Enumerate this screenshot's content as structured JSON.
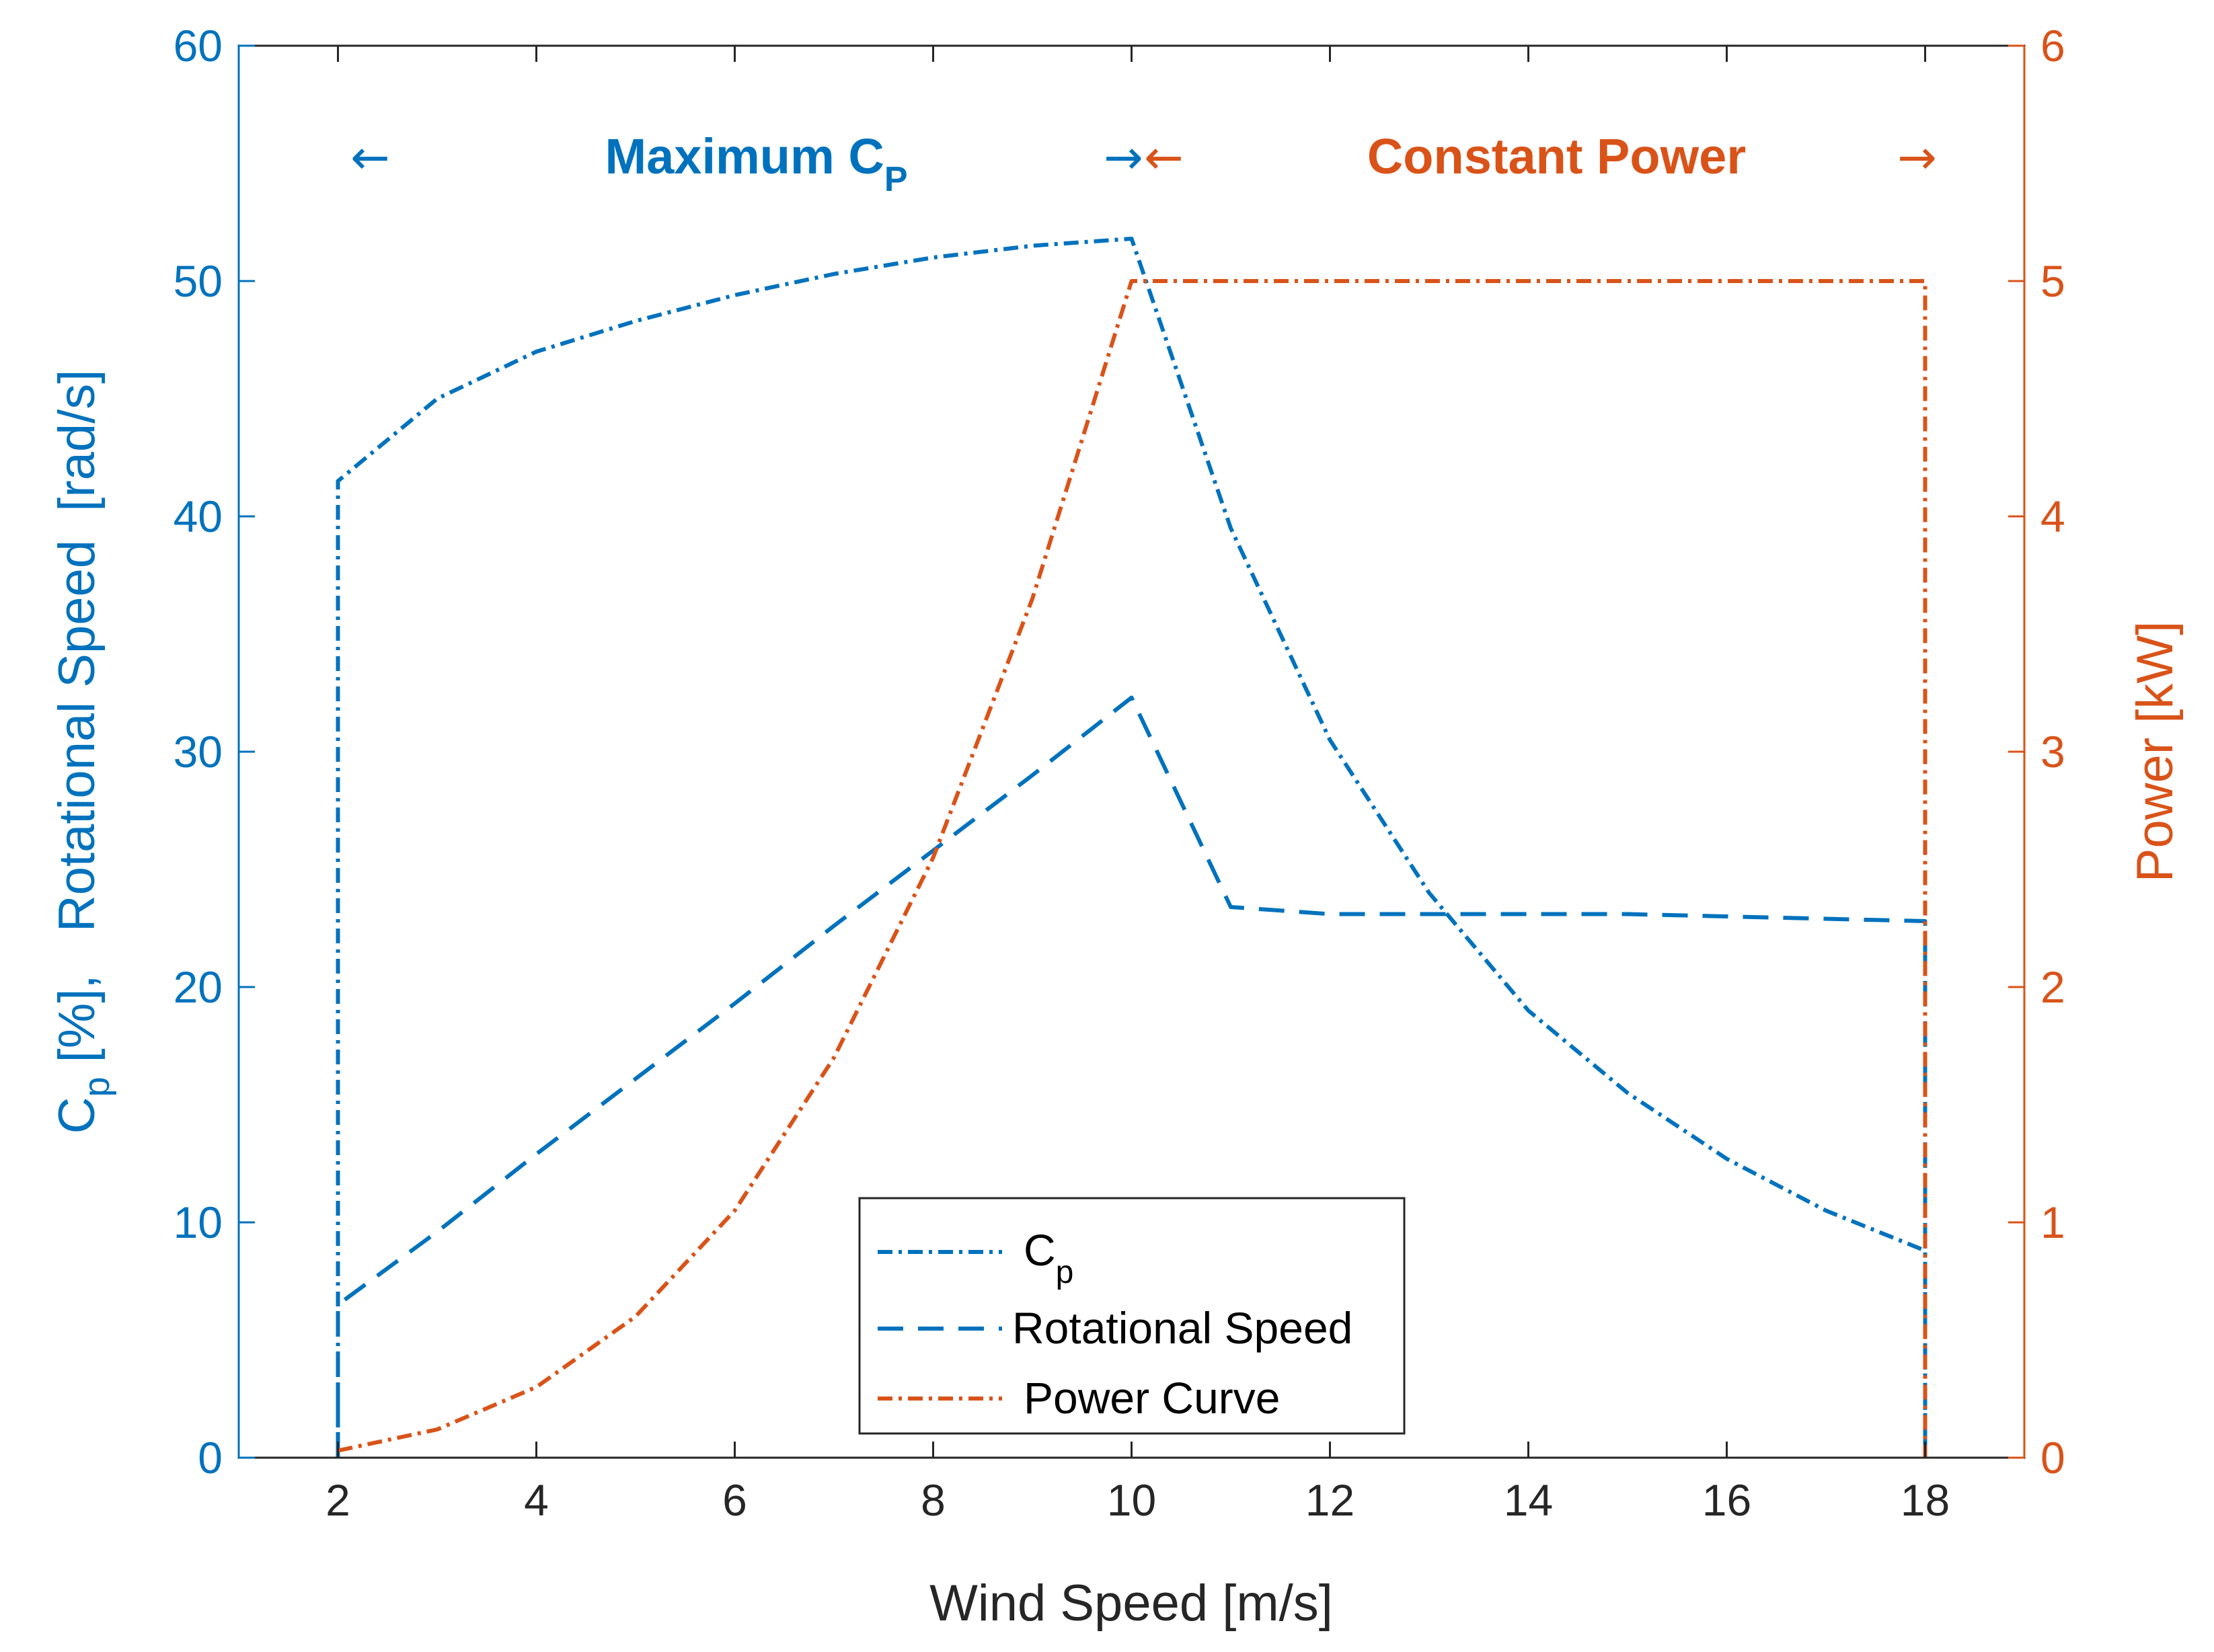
{
  "chart_data": {
    "type": "line",
    "xlabel": "Wind Speed [m/s]",
    "ylabel_left": {
      "main": "C",
      "sub": "p",
      "rest": " [%],   Rotational Speed  [rad/s]"
    },
    "ylabel_right": "Power [kW]",
    "xlim": [
      1,
      19
    ],
    "ylim_left": [
      0,
      60
    ],
    "ylim_right": [
      0,
      6
    ],
    "xticks": [
      2,
      4,
      6,
      8,
      10,
      12,
      14,
      16,
      18
    ],
    "yticks_left": [
      0,
      10,
      20,
      30,
      40,
      50,
      60
    ],
    "yticks_right": [
      0,
      1,
      2,
      3,
      4,
      5,
      6
    ],
    "colors": {
      "blue": "#0072BD",
      "orange": "#D95319",
      "axis": "#262626"
    },
    "regions": [
      {
        "label_main": "Maximum  C",
        "label_sub": "P",
        "from": 2,
        "to": 10,
        "color": "#0072BD",
        "left_arrow": "←",
        "right_arrow": "→"
      },
      {
        "label_main": "Constant Power",
        "label_sub": "",
        "from": 10,
        "to": 18,
        "color": "#D95319",
        "left_arrow": "←",
        "right_arrow": "→"
      }
    ],
    "series": [
      {
        "name": "Cp",
        "legend_main": "C",
        "legend_sub": "p",
        "axis": "left",
        "style": "dashdot",
        "color": "#0072BD",
        "x": [
          2,
          2,
          3,
          4,
          5,
          6,
          7,
          8,
          9,
          10,
          11,
          12,
          13,
          14,
          15,
          16,
          17,
          18,
          18
        ],
        "y": [
          0,
          41.5,
          45,
          47,
          48.3,
          49.4,
          50.3,
          51,
          51.5,
          51.8,
          39.5,
          30.5,
          24,
          19,
          15.5,
          12.7,
          10.5,
          8.8,
          0
        ]
      },
      {
        "name": "Rotational Speed",
        "legend_main": "Rotational Speed",
        "legend_sub": "",
        "axis": "left",
        "style": "dashed",
        "color": "#0072BD",
        "x": [
          2,
          2,
          3,
          4,
          5,
          6,
          7,
          8,
          9,
          10,
          11,
          12,
          13,
          14,
          15,
          16,
          17,
          18,
          18
        ],
        "y": [
          0,
          6.5,
          9.6,
          12.9,
          16.1,
          19.3,
          22.6,
          25.8,
          29.0,
          32.3,
          23.4,
          23.1,
          23.1,
          23.1,
          23.1,
          23.0,
          22.9,
          22.8,
          0
        ]
      },
      {
        "name": "Power Curve",
        "legend_main": "Power Curve",
        "legend_sub": "",
        "axis": "right",
        "style": "dashdot",
        "color": "#D95319",
        "x": [
          2,
          3,
          4,
          5,
          6,
          7,
          8,
          9,
          10,
          11,
          12,
          13,
          14,
          15,
          16,
          17,
          18,
          18
        ],
        "y": [
          0.03,
          0.12,
          0.3,
          0.6,
          1.05,
          1.7,
          2.55,
          3.65,
          5.0,
          5.0,
          5.0,
          5.0,
          5.0,
          5.0,
          5.0,
          5.0,
          5.0,
          0
        ]
      }
    ]
  }
}
